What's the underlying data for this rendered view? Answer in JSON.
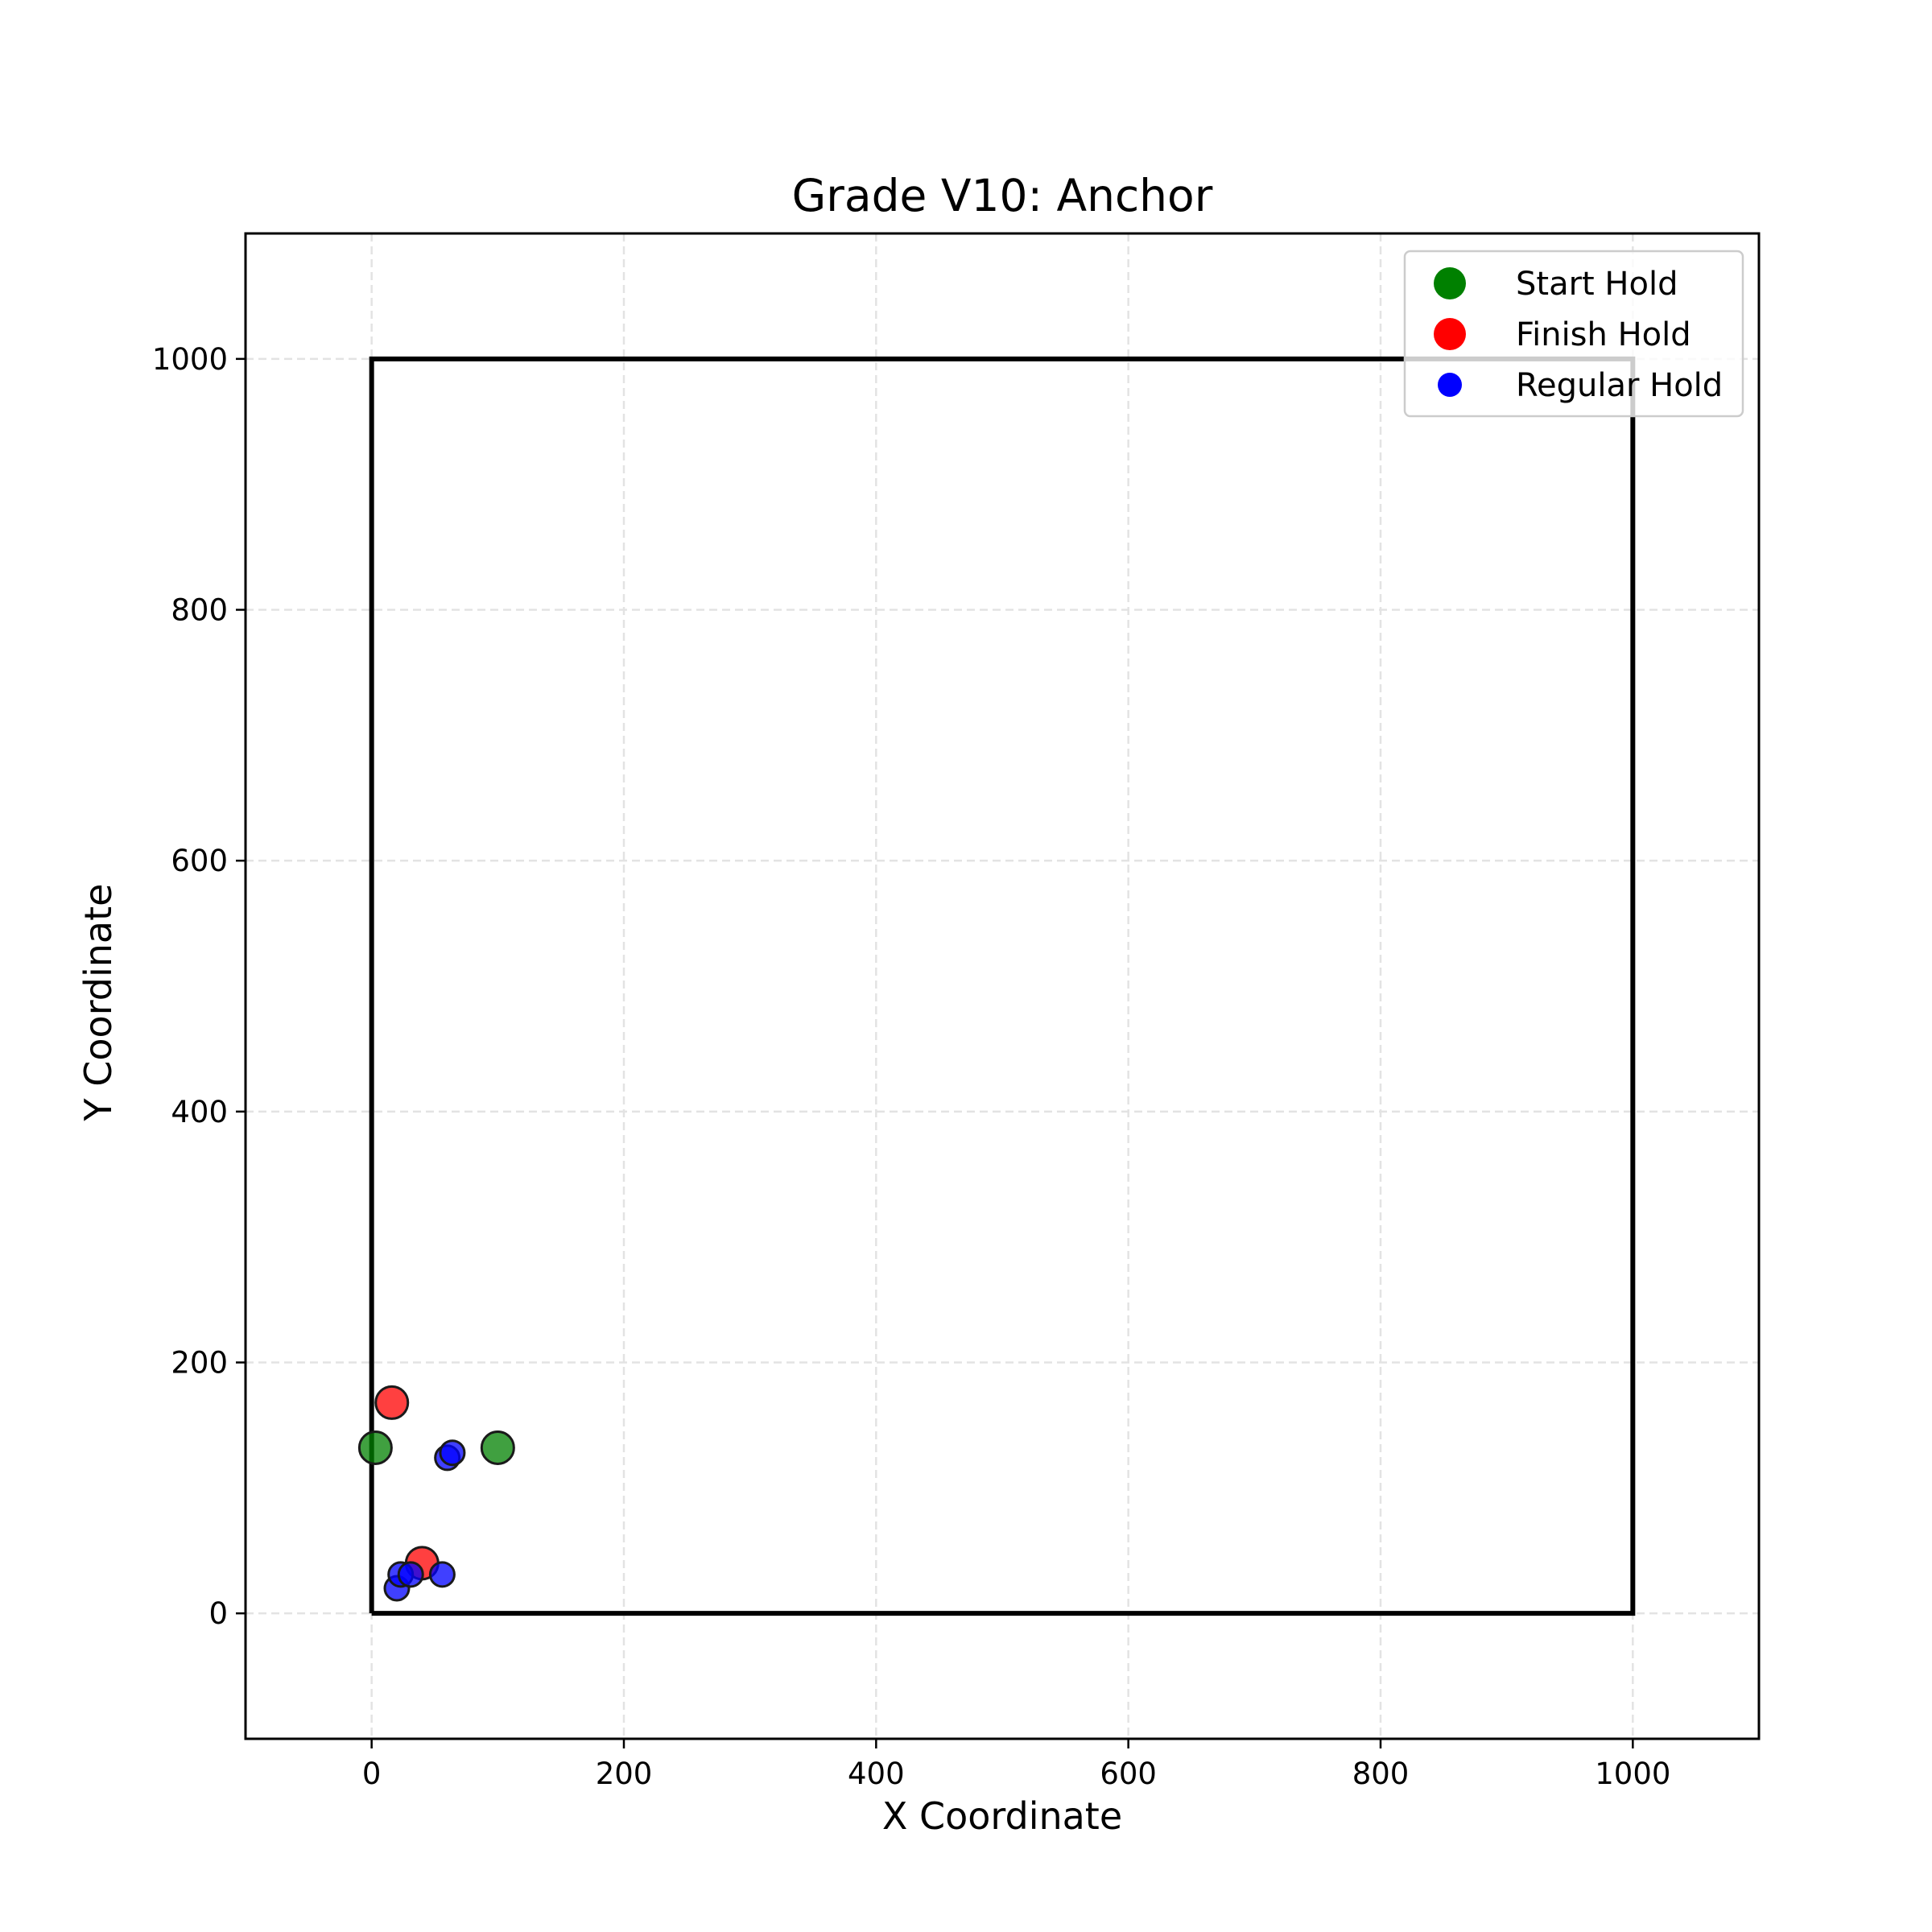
{
  "chart_data": {
    "type": "scatter",
    "title": "Grade V10: Anchor",
    "xlabel": "X Coordinate",
    "ylabel": "Y Coordinate",
    "xlim": [
      -100,
      1100
    ],
    "ylim": [
      -100,
      1100
    ],
    "xticks": [
      "0",
      "200",
      "400",
      "600",
      "800",
      "1000"
    ],
    "yticks": [
      "0",
      "200",
      "400",
      "600",
      "800",
      "1000"
    ],
    "grid": true,
    "legend_position": "top-right",
    "wall_boundary": [
      [
        0,
        0
      ],
      [
        1000,
        0
      ],
      [
        1000,
        1000
      ],
      [
        0,
        1000
      ],
      [
        0,
        0
      ]
    ],
    "series": [
      {
        "name": "Start Hold",
        "color": "#008000",
        "points": [
          [
            3,
            132
          ],
          [
            100,
            132
          ]
        ]
      },
      {
        "name": "Finish Hold",
        "color": "#ff0000",
        "points": [
          [
            16,
            168
          ],
          [
            40,
            40
          ]
        ]
      },
      {
        "name": "Regular Hold",
        "color": "#0000ff",
        "points": [
          [
            60,
            124
          ],
          [
            64,
            128
          ],
          [
            20,
            20
          ],
          [
            23,
            31
          ],
          [
            31,
            31
          ],
          [
            56,
            31
          ]
        ]
      }
    ]
  }
}
